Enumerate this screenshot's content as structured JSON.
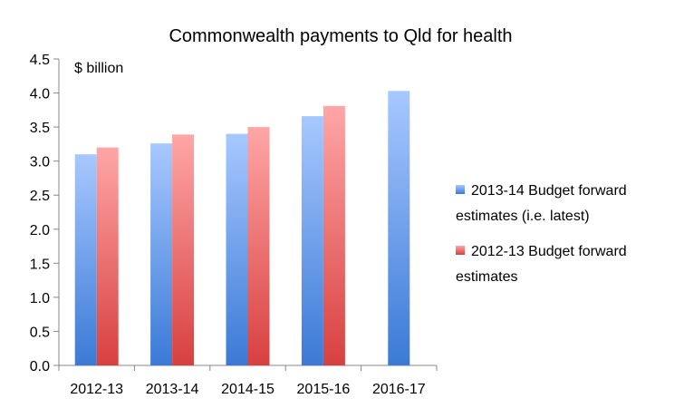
{
  "chart_data": {
    "type": "bar",
    "title": "Commonwealth payments to Qld for health",
    "unit_label": "$ billion",
    "categories": [
      "2012-13",
      "2013-14",
      "2014-15",
      "2015-16",
      "2016-17"
    ],
    "yticks": [
      "0.0",
      "0.5",
      "1.0",
      "1.5",
      "2.0",
      "2.5",
      "3.0",
      "3.5",
      "4.0",
      "4.5"
    ],
    "ylim": [
      0,
      4.5
    ],
    "grid": false,
    "legend_position": "right",
    "series": [
      {
        "name": "2013-14 Budget forward estimates (i.e. latest)",
        "legend_lines": [
          "2013-14 Budget forward",
          "estimates (i.e. latest)"
        ],
        "color_top": "#a8c8ff",
        "color_bottom": "#3a7ad6",
        "values": [
          3.1,
          3.26,
          3.4,
          3.66,
          4.03
        ]
      },
      {
        "name": "2012-13 Budget forward estimates",
        "legend_lines": [
          "2012-13 Budget forward",
          "estimates"
        ],
        "color_top": "#ffa6a6",
        "color_bottom": "#d84040",
        "values": [
          3.2,
          3.39,
          3.5,
          3.81,
          null
        ]
      }
    ]
  }
}
